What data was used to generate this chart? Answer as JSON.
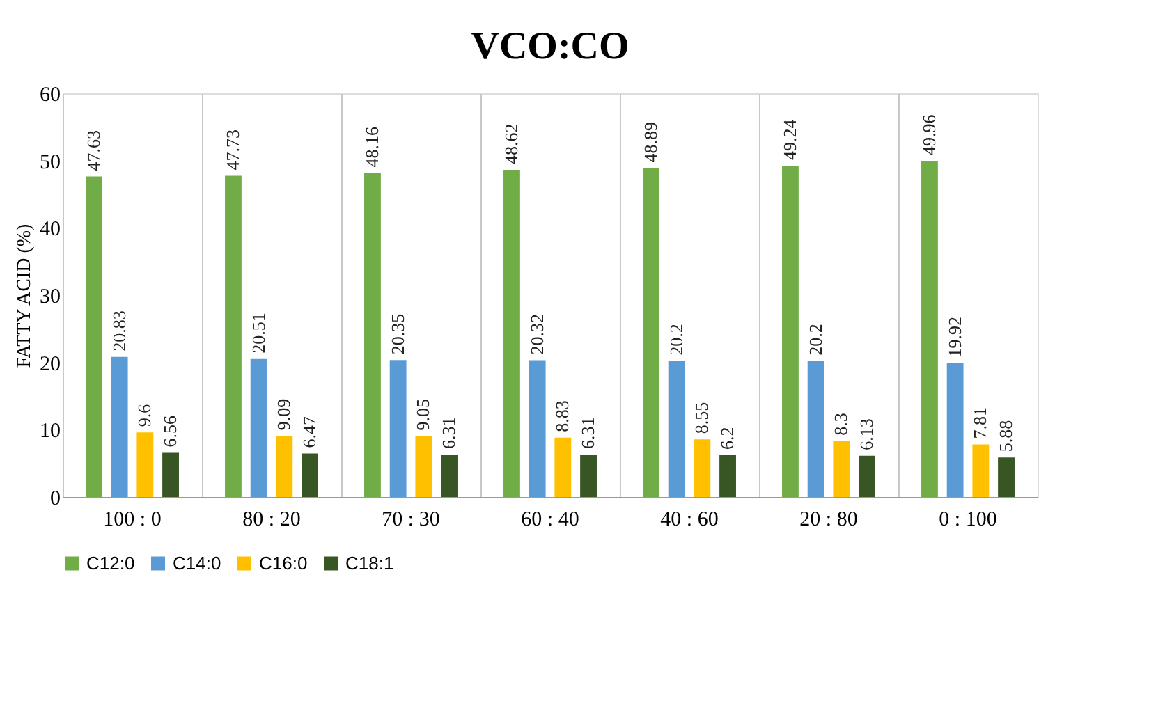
{
  "chart_data": {
    "type": "bar",
    "title": "VCO:CO",
    "ylabel": "FATTY ACID (%)",
    "categories": [
      "100 : 0",
      "80 : 20",
      "70 : 30",
      "60 : 40",
      "40 : 60",
      "20 : 80",
      "0 : 100"
    ],
    "series": [
      {
        "name": "C12:0",
        "color": "#70ad47",
        "values": [
          47.63,
          47.73,
          48.16,
          48.62,
          48.89,
          49.24,
          49.96
        ]
      },
      {
        "name": "C14:0",
        "color": "#5b9bd5",
        "values": [
          20.83,
          20.51,
          20.35,
          20.32,
          20.2,
          20.2,
          19.92
        ]
      },
      {
        "name": "C16:0",
        "color": "#ffc000",
        "values": [
          9.6,
          9.09,
          9.05,
          8.83,
          8.55,
          8.3,
          7.81
        ]
      },
      {
        "name": "C18:1",
        "color": "#375623",
        "values": [
          6.56,
          6.47,
          6.31,
          6.31,
          6.2,
          6.13,
          5.88
        ]
      }
    ],
    "ylim": [
      0,
      60
    ],
    "yticks": [
      0,
      10,
      20,
      30,
      40,
      50,
      60
    ],
    "grid": "x",
    "legend": "bottom",
    "data_labels": true
  }
}
